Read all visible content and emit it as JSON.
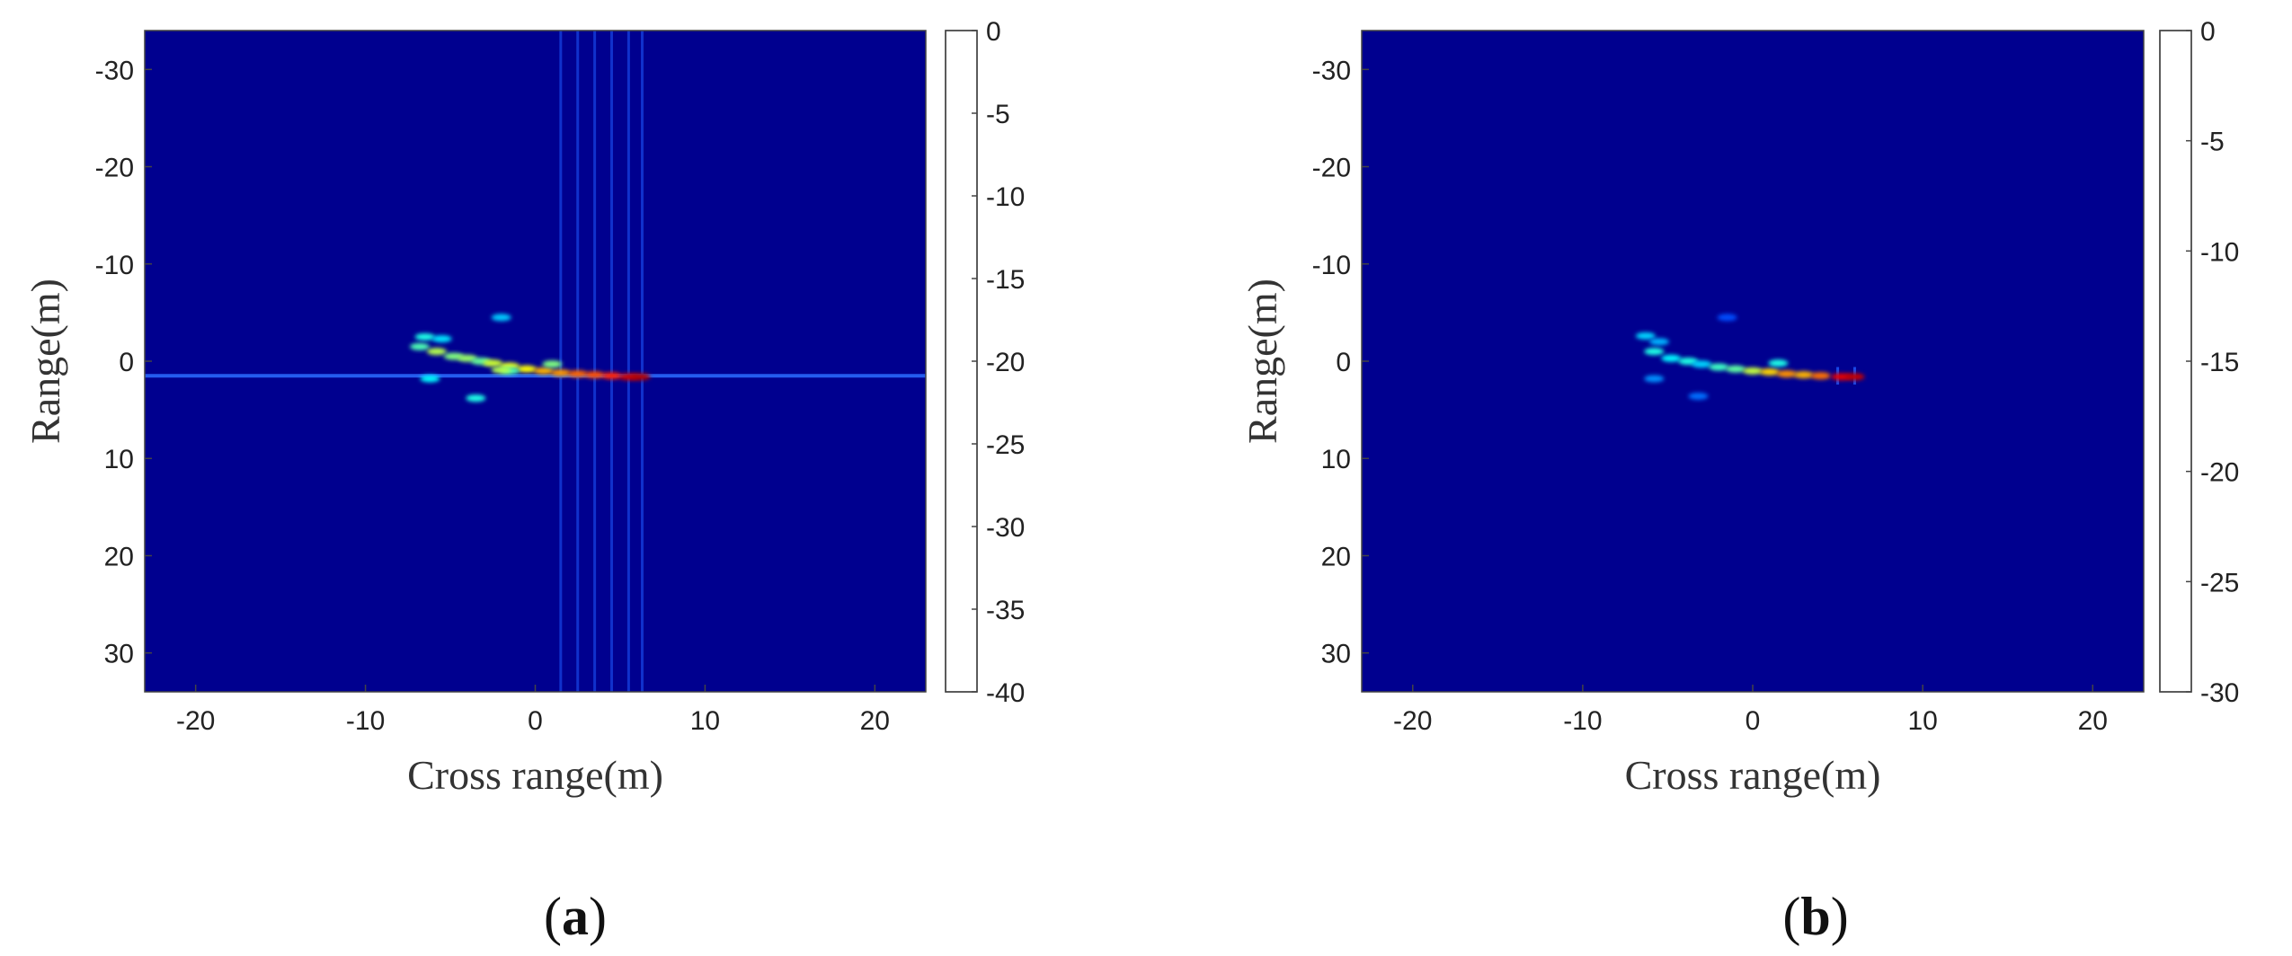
{
  "colormap": [
    "#00008f",
    "#0000ff",
    "#0080ff",
    "#00ffff",
    "#80ff80",
    "#ffff00",
    "#ff8000",
    "#ff0000",
    "#800000"
  ],
  "background_color": "#00008f",
  "chart_data": [
    {
      "type": "heatmap",
      "panel_label": {
        "open": "(",
        "letter": "a",
        "close": ")"
      },
      "xlabel": "Cross range(m)",
      "ylabel": "Range(m)",
      "xlim": [
        -23,
        23
      ],
      "ylim": [
        -34,
        34
      ],
      "y_reversed": true,
      "xticks": [
        -20,
        -10,
        0,
        10,
        20
      ],
      "xtick_labels": [
        "-20",
        "-10",
        "0",
        "10",
        "20"
      ],
      "yticks": [
        -30,
        -20,
        -10,
        0,
        10,
        20,
        30
      ],
      "ytick_labels": [
        "-30",
        "-20",
        "-10",
        "0",
        "10",
        "20",
        "30"
      ],
      "colorbar": {
        "range": [
          -40,
          0
        ],
        "ticks": [
          0,
          -5,
          -10,
          -15,
          -20,
          -25,
          -30,
          -35,
          -40
        ],
        "tick_labels": [
          "0",
          "-5",
          "-10",
          "-15",
          "-20",
          "-25",
          "-30",
          "-35",
          "-40"
        ]
      },
      "sidelobes": {
        "horizontal_line_range_m": 1.5,
        "vertical_line_cross_m": [
          1.5,
          2.5,
          3.5,
          4.5,
          5.5,
          6.3
        ]
      },
      "scatterers": [
        {
          "x": -6.5,
          "y": -2.5,
          "db": -24
        },
        {
          "x": -5.5,
          "y": -2.3,
          "db": -26
        },
        {
          "x": -6.8,
          "y": -1.5,
          "db": -22
        },
        {
          "x": -5.8,
          "y": -1.0,
          "db": -18
        },
        {
          "x": -4.8,
          "y": -0.5,
          "db": -20
        },
        {
          "x": -4.0,
          "y": -0.3,
          "db": -19
        },
        {
          "x": -3.2,
          "y": 0.0,
          "db": -21
        },
        {
          "x": -2.5,
          "y": 0.2,
          "db": -17
        },
        {
          "x": -1.5,
          "y": 0.5,
          "db": -16
        },
        {
          "x": -0.5,
          "y": 0.8,
          "db": -15
        },
        {
          "x": 0.5,
          "y": 1.0,
          "db": -12
        },
        {
          "x": 1.5,
          "y": 1.2,
          "db": -11
        },
        {
          "x": 2.5,
          "y": 1.3,
          "db": -9
        },
        {
          "x": 3.5,
          "y": 1.4,
          "db": -8
        },
        {
          "x": 4.5,
          "y": 1.5,
          "db": -6
        },
        {
          "x": 5.5,
          "y": 1.6,
          "db": -3
        },
        {
          "x": 6.2,
          "y": 1.6,
          "db": -2
        },
        {
          "x": -6.2,
          "y": 1.8,
          "db": -25
        },
        {
          "x": -3.5,
          "y": 3.8,
          "db": -24
        },
        {
          "x": -2.0,
          "y": -4.5,
          "db": -27
        },
        {
          "x": -1.5,
          "y": 1.0,
          "db": -22
        },
        {
          "x": 1.0,
          "y": 0.3,
          "db": -20
        },
        {
          "x": -2.0,
          "y": 0.9,
          "db": -18
        }
      ]
    },
    {
      "type": "heatmap",
      "panel_label": {
        "open": "(",
        "letter": "b",
        "close": ")"
      },
      "xlabel": "Cross range(m)",
      "ylabel": "Range(m)",
      "xlim": [
        -23,
        23
      ],
      "ylim": [
        -34,
        34
      ],
      "y_reversed": true,
      "xticks": [
        -20,
        -10,
        0,
        10,
        20
      ],
      "xtick_labels": [
        "-20",
        "-10",
        "0",
        "10",
        "20"
      ],
      "yticks": [
        -30,
        -20,
        -10,
        0,
        10,
        20,
        30
      ],
      "ytick_labels": [
        "-30",
        "-20",
        "-10",
        "0",
        "10",
        "20",
        "30"
      ],
      "colorbar": {
        "range": [
          -30,
          0
        ],
        "ticks": [
          0,
          -5,
          -10,
          -15,
          -20,
          -25,
          -30
        ],
        "tick_labels": [
          "0",
          "-5",
          "-10",
          "-15",
          "-20",
          "-25",
          "-30"
        ]
      },
      "sidelobes": {
        "horizontal_line_range_m": null,
        "vertical_line_cross_m": [
          5.0,
          6.0
        ]
      },
      "scatterers": [
        {
          "x": -6.3,
          "y": -2.6,
          "db": -20
        },
        {
          "x": -5.5,
          "y": -2.0,
          "db": -21
        },
        {
          "x": -5.8,
          "y": -1.0,
          "db": -18
        },
        {
          "x": -4.8,
          "y": -0.3,
          "db": -19
        },
        {
          "x": -3.8,
          "y": 0.0,
          "db": -18
        },
        {
          "x": -3.0,
          "y": 0.3,
          "db": -20
        },
        {
          "x": -2.0,
          "y": 0.6,
          "db": -17
        },
        {
          "x": -1.0,
          "y": 0.8,
          "db": -16
        },
        {
          "x": 0.0,
          "y": 1.0,
          "db": -13
        },
        {
          "x": 1.0,
          "y": 1.1,
          "db": -10
        },
        {
          "x": 2.0,
          "y": 1.3,
          "db": -8
        },
        {
          "x": 3.0,
          "y": 1.4,
          "db": -9
        },
        {
          "x": 4.0,
          "y": 1.5,
          "db": -7
        },
        {
          "x": 5.2,
          "y": 1.6,
          "db": -3
        },
        {
          "x": 6.0,
          "y": 1.6,
          "db": -2
        },
        {
          "x": -1.5,
          "y": -4.5,
          "db": -24
        },
        {
          "x": -5.8,
          "y": 1.8,
          "db": -22
        },
        {
          "x": -3.2,
          "y": 3.6,
          "db": -23
        },
        {
          "x": 1.5,
          "y": 0.2,
          "db": -18
        }
      ]
    }
  ]
}
